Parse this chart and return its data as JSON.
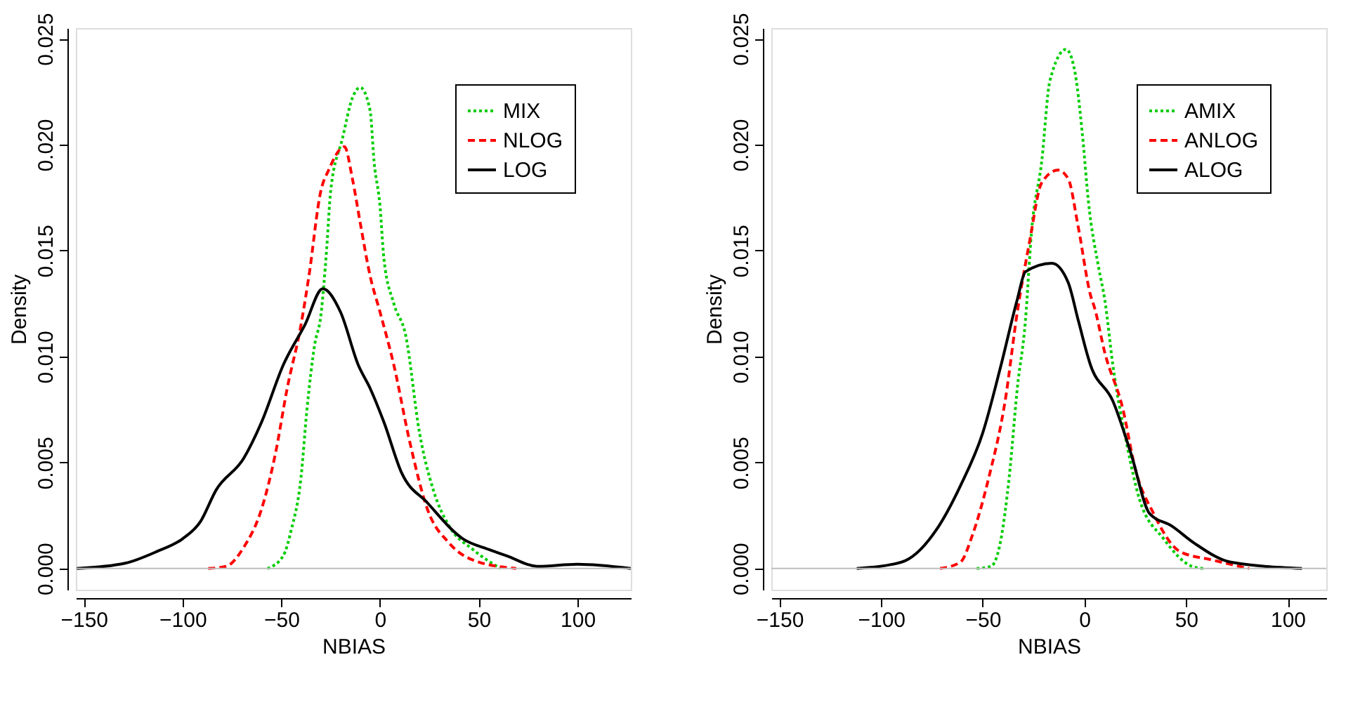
{
  "chart_data": [
    {
      "type": "line",
      "xlabel": "NBIAS",
      "ylabel": "Density",
      "xlim": [
        -154,
        127
      ],
      "ylim": [
        -0.001,
        0.0255
      ],
      "xticks": [
        -150,
        -100,
        -50,
        0,
        50,
        100
      ],
      "yticks": [
        {
          "value": 0,
          "label": "0.000"
        },
        {
          "value": 0.005,
          "label": "0.005"
        },
        {
          "value": 0.01,
          "label": "0.010"
        },
        {
          "value": 0.015,
          "label": "0.015"
        },
        {
          "value": 0.02,
          "label": "0.020"
        },
        {
          "value": 0.025,
          "label": "0.025"
        }
      ],
      "grid": false,
      "legend": "top right",
      "ref_lines": [
        {
          "axis": "y",
          "value": 0,
          "color": "#bebebe"
        }
      ],
      "series": [
        {
          "name": "MIX",
          "color": "#00cd00",
          "line_style": "dotted",
          "x": [
            -57,
            -49,
            -45,
            -40,
            -37,
            -33,
            -30,
            -27,
            -25,
            -19,
            -14,
            -10,
            -5,
            -3,
            0,
            2,
            7,
            13,
            20,
            27,
            35,
            47,
            61
          ],
          "values": [
            0,
            0.0006,
            0.0018,
            0.0043,
            0.0075,
            0.0106,
            0.0119,
            0.0151,
            0.0178,
            0.0203,
            0.0222,
            0.0227,
            0.0216,
            0.0192,
            0.0171,
            0.0146,
            0.0125,
            0.011,
            0.0064,
            0.0037,
            0.002,
            0.0009,
            0
          ]
        },
        {
          "name": "NLOG",
          "color": "#ff0000",
          "line_style": "dashed",
          "x": [
            -87,
            -78,
            -69,
            -60,
            -53,
            -47,
            -40,
            -36,
            -30,
            -26,
            -18,
            -14,
            -10,
            -5,
            0,
            7,
            15,
            24,
            35,
            47,
            69
          ],
          "values": [
            0,
            0.0001,
            0.001,
            0.0028,
            0.0054,
            0.0085,
            0.0115,
            0.0138,
            0.0178,
            0.0188,
            0.0199,
            0.0184,
            0.0163,
            0.0138,
            0.0121,
            0.0096,
            0.006,
            0.0028,
            0.0012,
            0.0004,
            0
          ]
        },
        {
          "name": "LOG",
          "color": "#000000",
          "line_style": "solid",
          "x": [
            -153.5,
            -129,
            -113,
            -100,
            -91,
            -83,
            -69,
            -60,
            -49,
            -38,
            -29,
            -20,
            -11,
            -5,
            2,
            11,
            24,
            42,
            55,
            64,
            80,
            100,
            127
          ],
          "values": [
            0,
            0.00025,
            0.0008,
            0.0014,
            0.0022,
            0.0037,
            0.0052,
            0.0069,
            0.0096,
            0.0115,
            0.0132,
            0.0121,
            0.0096,
            0.0085,
            0.0069,
            0.0045,
            0.0031,
            0.0014,
            0.0009,
            0.0006,
            0.0001,
            0.0002,
            0
          ]
        }
      ]
    },
    {
      "type": "line",
      "xlabel": "NBIAS",
      "ylabel": "Density",
      "xlim": [
        -154,
        119
      ],
      "ylim": [
        -0.001,
        0.0255
      ],
      "xticks": [
        -150,
        -100,
        -50,
        0,
        50,
        100
      ],
      "yticks": [
        {
          "value": 0,
          "label": "0.000"
        },
        {
          "value": 0.005,
          "label": "0.005"
        },
        {
          "value": 0.01,
          "label": "0.010"
        },
        {
          "value": 0.015,
          "label": "0.015"
        },
        {
          "value": 0.02,
          "label": "0.020"
        },
        {
          "value": 0.025,
          "label": "0.025"
        }
      ],
      "grid": false,
      "legend": "top right",
      "ref_lines": [
        {
          "axis": "y",
          "value": 0,
          "color": "#bebebe"
        }
      ],
      "series": [
        {
          "name": "AMIX",
          "color": "#00cd00",
          "line_style": "dotted",
          "x": [
            -53,
            -46,
            -41,
            -37,
            -33,
            -29,
            -26,
            -21,
            -17,
            -9,
            -5,
            -1,
            2,
            7,
            10,
            14,
            21,
            27,
            39,
            53,
            59
          ],
          "values": [
            0,
            0.0001,
            0.0014,
            0.0043,
            0.0085,
            0.0117,
            0.0159,
            0.0192,
            0.023,
            0.0245,
            0.0236,
            0.0205,
            0.0173,
            0.0142,
            0.0127,
            0.0096,
            0.0058,
            0.0033,
            0.0014,
            0.0001,
            0
          ]
        },
        {
          "name": "ANLOG",
          "color": "#ff0000",
          "line_style": "dashed",
          "x": [
            -71,
            -61,
            -55,
            -47,
            -39,
            -33,
            -27,
            -21,
            -13,
            -8,
            -3,
            3,
            5,
            10,
            19,
            25,
            34,
            47,
            63,
            81
          ],
          "values": [
            0,
            0.0003,
            0.0016,
            0.0043,
            0.0079,
            0.0121,
            0.0154,
            0.0182,
            0.0188,
            0.0184,
            0.0161,
            0.0129,
            0.0123,
            0.0102,
            0.0075,
            0.0047,
            0.0026,
            0.0008,
            0.0004,
            0
          ]
        },
        {
          "name": "ALOG",
          "color": "#000000",
          "line_style": "solid",
          "x": [
            -112,
            -90,
            -73,
            -61,
            -50,
            -41,
            -33,
            -29,
            -16,
            -8,
            -3,
            3,
            14,
            23,
            32,
            43,
            54,
            72,
            107
          ],
          "values": [
            0,
            0.0003,
            0.0018,
            0.0039,
            0.0064,
            0.0096,
            0.0127,
            0.014,
            0.0144,
            0.0135,
            0.0117,
            0.0096,
            0.0079,
            0.0054,
            0.0026,
            0.002,
            0.0012,
            0.0003,
            0
          ]
        }
      ]
    }
  ]
}
